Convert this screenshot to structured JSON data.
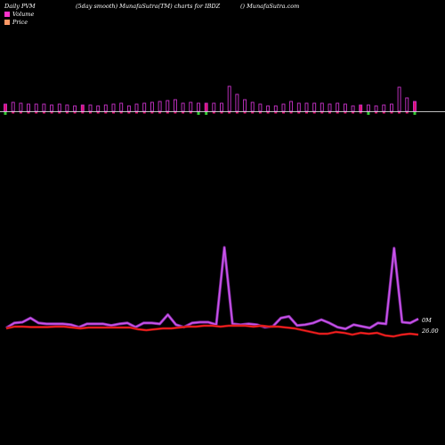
{
  "header": {
    "left": "Daily PVM",
    "mid": "(5day smooth) MunafaSutra(TM) charts for IBDZ",
    "right": "() MunafaSutra.com"
  },
  "legend": [
    {
      "label": "Volume",
      "color": "#ff33cc"
    },
    {
      "label": "Price",
      "color": "#ff9966"
    }
  ],
  "colors": {
    "volume_up": "#cc33cc",
    "volume_down_fill": "#e0106f",
    "volume_green": "#33cc33",
    "volume_line": "#cc55ee",
    "price_line": "#ff2020"
  },
  "chart_data": [
    {
      "type": "bar",
      "title": "",
      "series": [
        {
          "name": "Volume",
          "values": [
            8,
            10,
            9,
            8,
            8,
            8,
            7,
            8,
            7,
            6,
            7,
            7,
            6,
            7,
            8,
            9,
            6,
            8,
            9,
            10,
            11,
            12,
            13,
            9,
            10,
            9,
            9,
            9,
            9,
            28,
            19,
            13,
            10,
            8,
            6,
            6,
            8,
            11,
            9,
            9,
            9,
            9,
            8,
            9,
            8,
            6,
            7,
            7,
            6,
            7,
            8,
            27,
            15,
            11
          ],
          "direction": [
            "down",
            "up",
            "up",
            "up",
            "up",
            "up",
            "up",
            "up",
            "up",
            "up",
            "down",
            "up",
            "up",
            "up",
            "up",
            "up",
            "up",
            "up",
            "up",
            "up",
            "up",
            "up",
            "up",
            "up",
            "up",
            "up",
            "down",
            "up",
            "up",
            "up",
            "up",
            "up",
            "up",
            "up",
            "up",
            "up",
            "up",
            "up",
            "up",
            "up",
            "up",
            "up",
            "up",
            "up",
            "up",
            "up",
            "down",
            "up",
            "up",
            "up",
            "up",
            "up",
            "up",
            "down"
          ],
          "green": [
            true,
            false,
            false,
            false,
            false,
            false,
            false,
            false,
            false,
            false,
            false,
            false,
            false,
            false,
            false,
            false,
            false,
            false,
            false,
            false,
            false,
            false,
            false,
            false,
            false,
            true,
            true,
            false,
            false,
            false,
            false,
            false,
            false,
            false,
            false,
            false,
            false,
            false,
            false,
            false,
            false,
            false,
            false,
            false,
            false,
            false,
            false,
            true,
            false,
            false,
            false,
            false,
            false,
            true
          ]
        }
      ]
    },
    {
      "type": "line",
      "title": "",
      "series": [
        {
          "name": "Volume",
          "values": [
            8,
            14,
            15,
            20,
            14,
            13,
            13,
            13,
            12,
            9,
            13,
            13,
            13,
            11,
            13,
            14,
            9,
            14,
            14,
            13,
            24,
            12,
            9,
            14,
            15,
            15,
            12,
            105,
            13,
            12,
            13,
            12,
            9,
            10,
            20,
            22,
            11,
            12,
            14,
            18,
            14,
            9,
            7,
            12,
            10,
            8,
            14,
            13,
            104,
            15,
            14,
            19
          ],
          "end_label": "0M"
        },
        {
          "name": "Price",
          "values": [
            8,
            10,
            10,
            9.5,
            9.5,
            9.5,
            10,
            10,
            9,
            8,
            9,
            9,
            9,
            9,
            9,
            9,
            7,
            6,
            7,
            8,
            8,
            9,
            10,
            10,
            11,
            11,
            10,
            11,
            11,
            11,
            10,
            11,
            10,
            10,
            9,
            8,
            6,
            4,
            2,
            2,
            4,
            3,
            1,
            3,
            2,
            3,
            0,
            -1,
            1,
            2,
            1
          ],
          "end_label": "26.00"
        }
      ]
    }
  ]
}
